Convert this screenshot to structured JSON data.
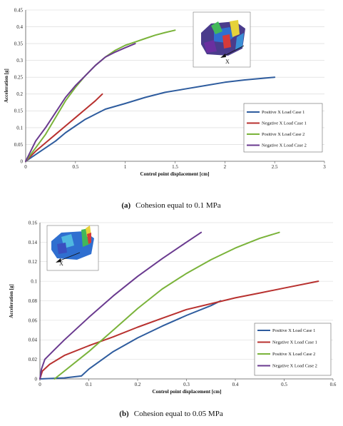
{
  "colors": {
    "positive_case_1": "#2e5c9e",
    "negative_case_1": "#b8312f",
    "positive_case_2": "#7ab33a",
    "negative_case_2": "#6a3a8f",
    "grid": "#d6d6d6",
    "axis": "#555555"
  },
  "inset_icon": "structure-model-icon",
  "chart_data": [
    {
      "type": "line",
      "xlabel": "Control point displacement [cm]",
      "ylabel": "Acceleration [g]",
      "xlim": [
        0,
        3
      ],
      "ylim": [
        0,
        0.45
      ],
      "x_ticks": [
        "0",
        "0.5",
        "1",
        "1.5",
        "2",
        "2.5",
        "3"
      ],
      "y_ticks": [
        "0",
        "0.05",
        "0.1",
        "0.15",
        "0.2",
        "0.25",
        "0.3",
        "0.35",
        "0.4",
        "0.45"
      ],
      "grid": "horizontal",
      "legend_position": "right-middle",
      "inset_label": "X",
      "caption_tag": "(a)",
      "caption_text": "Cohesion equal to 0.1 MPa",
      "series": [
        {
          "name": "Positive X Load Case 1",
          "color_key": "positive_case_1",
          "points": [
            [
              0,
              0
            ],
            [
              0.1,
              0.02
            ],
            [
              0.2,
              0.04
            ],
            [
              0.3,
              0.06
            ],
            [
              0.4,
              0.085
            ],
            [
              0.5,
              0.105
            ],
            [
              0.6,
              0.125
            ],
            [
              0.7,
              0.14
            ],
            [
              0.8,
              0.155
            ],
            [
              1.0,
              0.172
            ],
            [
              1.2,
              0.19
            ],
            [
              1.4,
              0.205
            ],
            [
              1.6,
              0.215
            ],
            [
              1.8,
              0.225
            ],
            [
              2.0,
              0.235
            ],
            [
              2.2,
              0.242
            ],
            [
              2.5,
              0.25
            ]
          ]
        },
        {
          "name": "Negative X Load Case 1",
          "color_key": "negative_case_1",
          "points": [
            [
              0,
              0
            ],
            [
              0.05,
              0.015
            ],
            [
              0.1,
              0.03
            ],
            [
              0.2,
              0.055
            ],
            [
              0.3,
              0.08
            ],
            [
              0.4,
              0.105
            ],
            [
              0.5,
              0.13
            ],
            [
              0.6,
              0.155
            ],
            [
              0.7,
              0.18
            ],
            [
              0.77,
              0.2
            ]
          ]
        },
        {
          "name": "Positive X Load Case 2",
          "color_key": "positive_case_2",
          "points": [
            [
              0,
              0
            ],
            [
              0.1,
              0.04
            ],
            [
              0.2,
              0.08
            ],
            [
              0.3,
              0.13
            ],
            [
              0.4,
              0.18
            ],
            [
              0.5,
              0.22
            ],
            [
              0.6,
              0.255
            ],
            [
              0.7,
              0.285
            ],
            [
              0.8,
              0.31
            ],
            [
              0.9,
              0.33
            ],
            [
              1.0,
              0.345
            ],
            [
              1.1,
              0.355
            ],
            [
              1.2,
              0.365
            ],
            [
              1.3,
              0.375
            ],
            [
              1.4,
              0.383
            ],
            [
              1.5,
              0.39
            ]
          ]
        },
        {
          "name": "Negative X Load Case 2",
          "color_key": "negative_case_2",
          "points": [
            [
              0,
              0
            ],
            [
              0.05,
              0.03
            ],
            [
              0.1,
              0.06
            ],
            [
              0.2,
              0.1
            ],
            [
              0.3,
              0.145
            ],
            [
              0.4,
              0.19
            ],
            [
              0.5,
              0.225
            ],
            [
              0.6,
              0.255
            ],
            [
              0.7,
              0.285
            ],
            [
              0.8,
              0.31
            ],
            [
              0.9,
              0.325
            ],
            [
              1.0,
              0.338
            ],
            [
              1.1,
              0.35
            ]
          ]
        }
      ]
    },
    {
      "type": "line",
      "xlabel": "Control point displacement [cm]",
      "ylabel": "Acceleration [g]",
      "xlim": [
        0,
        0.6
      ],
      "ylim": [
        0,
        0.16
      ],
      "x_ticks": [
        "0",
        "0.1",
        "0.2",
        "0.3",
        "0.4",
        "0.5",
        "0.6"
      ],
      "y_ticks": [
        "0",
        "0.02",
        "0.04",
        "0.06",
        "0.08",
        "0.1",
        "0.12",
        "0.14",
        "0.16"
      ],
      "grid": "horizontal",
      "legend_position": "bottom-right",
      "inset_label": "X",
      "caption_tag": "(b)",
      "caption_text": "Cohesion equal to 0.05 MPa",
      "series": [
        {
          "name": "Positive X Load Case 1",
          "color_key": "positive_case_1",
          "points": [
            [
              0,
              0
            ],
            [
              0.05,
              0.001
            ],
            [
              0.085,
              0.003
            ],
            [
              0.1,
              0.01
            ],
            [
              0.15,
              0.028
            ],
            [
              0.2,
              0.042
            ],
            [
              0.25,
              0.054
            ],
            [
              0.3,
              0.065
            ],
            [
              0.35,
              0.075
            ],
            [
              0.37,
              0.08
            ]
          ]
        },
        {
          "name": "Negative X Load Case 1",
          "color_key": "negative_case_1",
          "points": [
            [
              0,
              0
            ],
            [
              0.005,
              0.008
            ],
            [
              0.02,
              0.015
            ],
            [
              0.05,
              0.024
            ],
            [
              0.1,
              0.034
            ],
            [
              0.15,
              0.043
            ],
            [
              0.2,
              0.053
            ],
            [
              0.25,
              0.062
            ],
            [
              0.3,
              0.071
            ],
            [
              0.35,
              0.077
            ],
            [
              0.4,
              0.083
            ],
            [
              0.45,
              0.088
            ],
            [
              0.5,
              0.093
            ],
            [
              0.57,
              0.1
            ]
          ]
        },
        {
          "name": "Positive X Load Case 2",
          "color_key": "positive_case_2",
          "points": [
            [
              0.03,
              0
            ],
            [
              0.1,
              0.028
            ],
            [
              0.15,
              0.05
            ],
            [
              0.2,
              0.072
            ],
            [
              0.25,
              0.092
            ],
            [
              0.3,
              0.108
            ],
            [
              0.35,
              0.122
            ],
            [
              0.4,
              0.134
            ],
            [
              0.45,
              0.144
            ],
            [
              0.49,
              0.15
            ]
          ]
        },
        {
          "name": "Negative X Load Case 2",
          "color_key": "negative_case_2",
          "points": [
            [
              0,
              0
            ],
            [
              0.003,
              0.01
            ],
            [
              0.01,
              0.02
            ],
            [
              0.03,
              0.03
            ],
            [
              0.05,
              0.04
            ],
            [
              0.1,
              0.063
            ],
            [
              0.15,
              0.085
            ],
            [
              0.2,
              0.105
            ],
            [
              0.25,
              0.123
            ],
            [
              0.3,
              0.14
            ],
            [
              0.33,
              0.15
            ]
          ]
        }
      ]
    }
  ]
}
